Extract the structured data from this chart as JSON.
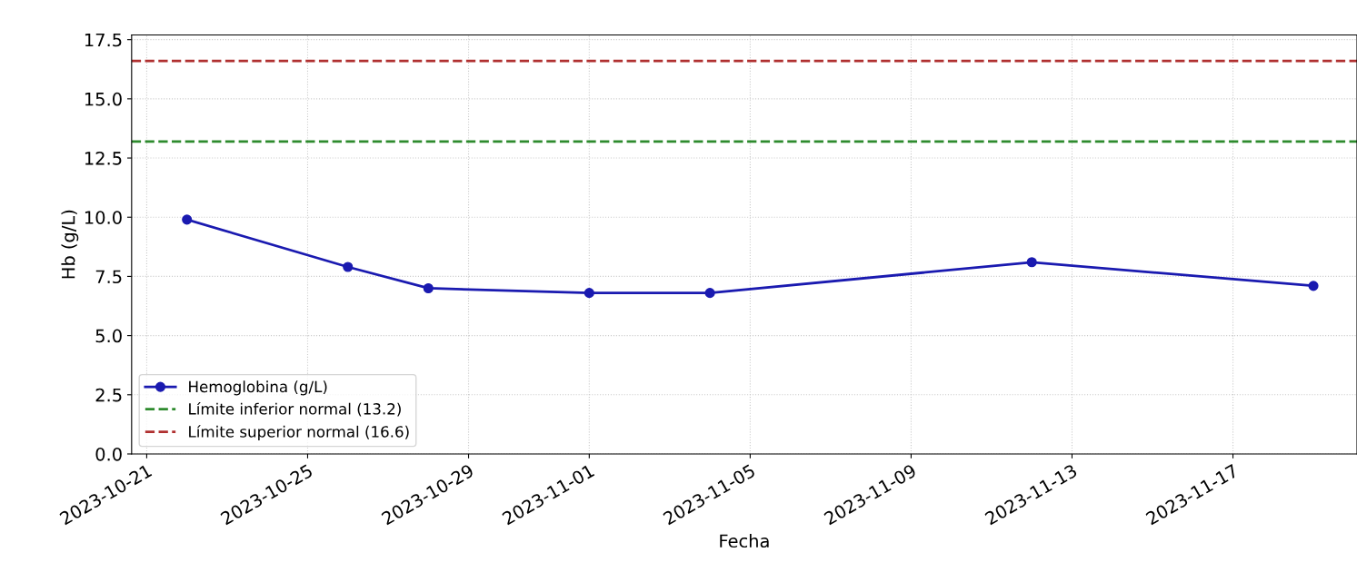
{
  "chart_data": {
    "type": "line",
    "xlabel": "Fecha",
    "ylabel": "Hb (g/L)",
    "x": [
      "2023-10-22",
      "2023-10-26",
      "2023-10-28",
      "2023-11-01",
      "2023-11-04",
      "2023-11-12",
      "2023-11-19"
    ],
    "series": [
      {
        "name": "Hemoglobina (g/L)",
        "color": "#1a1ab0",
        "values": [
          9.9,
          7.9,
          7.0,
          6.8,
          6.8,
          8.1,
          7.1
        ]
      }
    ],
    "ref_lines": [
      {
        "axis": "y",
        "value": 13.2,
        "label": "Límite inferior normal (13.2)",
        "color": "#2e8b2e",
        "line_style": "dashed"
      },
      {
        "axis": "y",
        "value": 16.6,
        "label": "Límite superior normal (16.6)",
        "color": "#b03030",
        "line_style": "dashed"
      }
    ],
    "xlim": [
      "2023-10-20T15:00",
      "2023-11-20T02:00"
    ],
    "xticks": [
      "2023-10-21",
      "2023-10-25",
      "2023-10-29",
      "2023-11-01",
      "2023-11-05",
      "2023-11-09",
      "2023-11-13",
      "2023-11-17"
    ],
    "ylim": [
      0,
      17.7
    ],
    "yticks": [
      {
        "value": 0,
        "label": "0.0"
      },
      {
        "value": 2.5,
        "label": "2.5"
      },
      {
        "value": 5,
        "label": "5.0"
      },
      {
        "value": 7.5,
        "label": "7.5"
      },
      {
        "value": 10,
        "label": "10.0"
      },
      {
        "value": 12.5,
        "label": "12.5"
      },
      {
        "value": 15,
        "label": "15.0"
      },
      {
        "value": 17.5,
        "label": "17.5"
      }
    ],
    "grid": true,
    "legend": "bottom left",
    "marker": "circle",
    "line_style": "solid"
  }
}
